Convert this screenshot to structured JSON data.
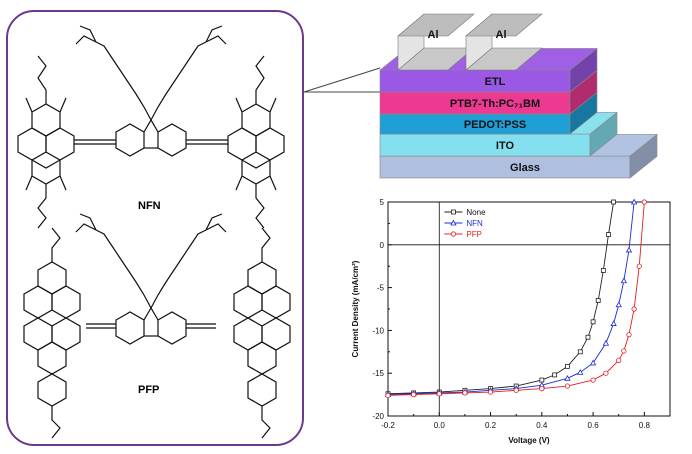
{
  "molecules": {
    "top": {
      "name": "NFN"
    },
    "bottom": {
      "name": "PFP"
    }
  },
  "device": {
    "layers": [
      "Glass",
      "ITO",
      "PEDOT:PSS",
      "PTB7-Th:PC₇₁BM",
      "ETL"
    ],
    "electrodes": [
      "Al",
      "Al"
    ],
    "colors": {
      "glass": "#aebfe0",
      "ito": "#84e0ee",
      "pedot": "#1f9fd6",
      "active": "#ec3a93",
      "etl": "#9a58e4",
      "electrode": "#d0d0d0"
    }
  },
  "chart_data": {
    "type": "line",
    "xlabel": "Voltage (V)",
    "ylabel": "Current Density (mA/cm²)",
    "xlim": [
      -0.2,
      0.9
    ],
    "ylim": [
      -20,
      5
    ],
    "xticks": [
      "-0.2",
      "0.0",
      "0.2",
      "0.4",
      "0.6",
      "0.8"
    ],
    "yticks": [
      "5",
      "0",
      "-5",
      "-10",
      "-15",
      "-20"
    ],
    "legend_position": "top-left",
    "series": [
      {
        "name": "None",
        "color": "#222222",
        "marker": "square",
        "x": [
          -0.2,
          -0.1,
          0.0,
          0.1,
          0.2,
          0.3,
          0.4,
          0.45,
          0.5,
          0.55,
          0.58,
          0.6,
          0.62,
          0.64,
          0.66,
          0.68
        ],
        "y": [
          -17.4,
          -17.3,
          -17.2,
          -17.0,
          -16.8,
          -16.5,
          -15.8,
          -15.2,
          -14.2,
          -12.5,
          -10.8,
          -9.0,
          -6.5,
          -3.0,
          1.2,
          5.0
        ]
      },
      {
        "name": "NFN",
        "color": "#1a2bd8",
        "marker": "triangle",
        "x": [
          -0.2,
          -0.1,
          0.0,
          0.1,
          0.2,
          0.3,
          0.4,
          0.5,
          0.55,
          0.6,
          0.65,
          0.68,
          0.7,
          0.72,
          0.74,
          0.76
        ],
        "y": [
          -17.5,
          -17.4,
          -17.3,
          -17.2,
          -17.0,
          -16.8,
          -16.4,
          -15.6,
          -14.9,
          -13.8,
          -11.5,
          -9.2,
          -7.0,
          -4.2,
          -0.6,
          5.0
        ]
      },
      {
        "name": "PFP",
        "color": "#e02020",
        "marker": "circle",
        "x": [
          -0.2,
          -0.1,
          0.0,
          0.1,
          0.2,
          0.3,
          0.4,
          0.5,
          0.6,
          0.65,
          0.7,
          0.72,
          0.74,
          0.76,
          0.78,
          0.8
        ],
        "y": [
          -17.6,
          -17.5,
          -17.4,
          -17.3,
          -17.2,
          -17.0,
          -16.8,
          -16.5,
          -15.8,
          -15.0,
          -13.5,
          -12.4,
          -10.5,
          -7.5,
          -2.5,
          5.0
        ]
      }
    ]
  }
}
